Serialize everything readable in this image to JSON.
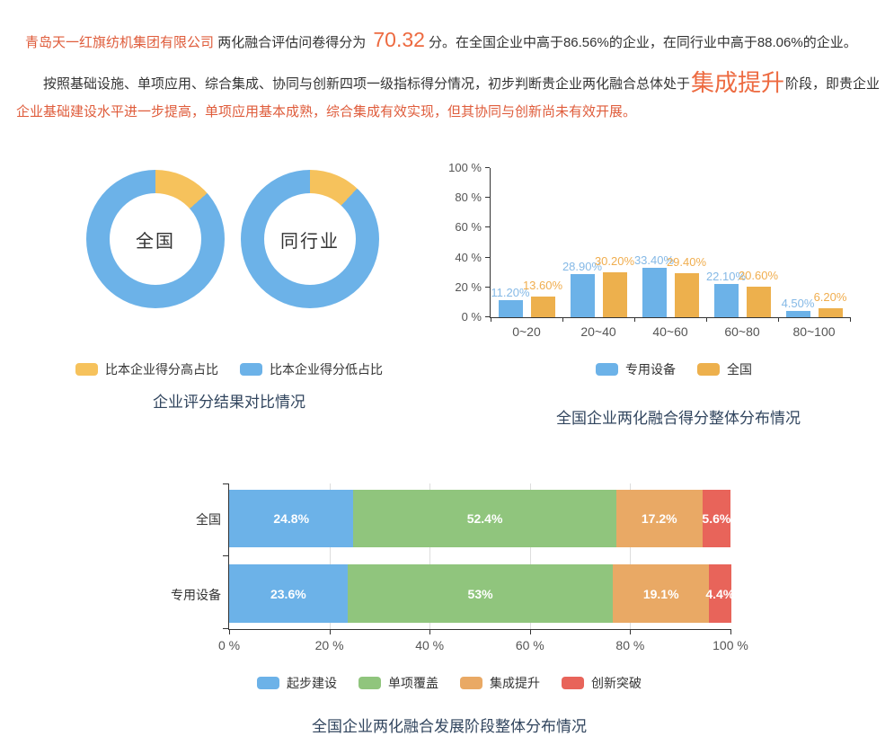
{
  "page": {
    "summary": {
      "company": "青岛天一红旗纺机集团有限公司",
      "score_prefix": "两化融合评估问卷得分为",
      "score": "70.32",
      "score_suffix": "分。在全国企业中高于86.56%的企业，在同行业中高于88.06%的企业。"
    },
    "stage_paragraph": {
      "part1": "按照基础设施、单项应用、综合集成、协同与创新四项一级指标得分情况，初步判断贵企业两化融合总体处于",
      "stage": "集成提升",
      "part2": "阶段，即贵企业",
      "part3": "企业基础建设水平进一步提高，单项应用基本成熟，综合集成有效实现，但其协同与创新尚未有效开展。"
    }
  },
  "colors": {
    "blue": "#6cb2e8",
    "yellow_donut": "#f6c25c",
    "yellow_bar": "#edb04d",
    "green": "#90c57d",
    "orange": "#e9a965",
    "red": "#e8645a",
    "title_navy": "#31455e",
    "accent_orange": "#ed6a40",
    "accent_red_text": "#df5c3b",
    "label_blue": "#85b9e6",
    "label_orange": "#f0ad4e"
  },
  "chart_data": [
    {
      "type": "pie",
      "variant": "donut",
      "name": "全国",
      "title": "企业评分结果对比情况",
      "labels": [
        "比本企业得分高占比",
        "比本企业得分低占比"
      ],
      "values": [
        13.44,
        86.56
      ],
      "colors": [
        "#f6c25c",
        "#6cb2e8"
      ],
      "legend_position": "bottom"
    },
    {
      "type": "pie",
      "variant": "donut",
      "name": "同行业",
      "labels": [
        "比本企业得分高占比",
        "比本企业得分低占比"
      ],
      "values": [
        11.94,
        88.06
      ],
      "colors": [
        "#f6c25c",
        "#6cb2e8"
      ]
    },
    {
      "type": "bar",
      "title": "全国企业两化融合得分整体分布情况",
      "categories": [
        "0~20",
        "20~40",
        "40~60",
        "60~80",
        "80~100"
      ],
      "series": [
        {
          "name": "专用设备",
          "color": "#6cb2e8",
          "label_color": "#85b9e6",
          "values": [
            11.2,
            28.9,
            33.4,
            22.1,
            4.5
          ],
          "labels": [
            "11.20%",
            "28.90%",
            "33.40%",
            "22.10%",
            "4.50%"
          ]
        },
        {
          "name": "全国",
          "color": "#edb04d",
          "label_color": "#f0ad4e",
          "values": [
            13.6,
            30.2,
            29.4,
            20.6,
            6.2
          ],
          "labels": [
            "13.60%",
            "30.20%",
            "29.40%",
            "20.60%",
            "6.20%"
          ]
        }
      ],
      "ylim": [
        0,
        100
      ],
      "yticks": [
        "0 %",
        "20 %",
        "40 %",
        "60 %",
        "80 %",
        "100 %"
      ],
      "grid": false,
      "legend_position": "bottom"
    },
    {
      "type": "bar",
      "variant": "stacked-horizontal",
      "title": "全国企业两化融合发展阶段整体分布情况",
      "categories": [
        "全国",
        "专用设备"
      ],
      "series": [
        {
          "name": "起步建设",
          "color": "#6cb2e8",
          "values": [
            24.8,
            23.6
          ],
          "labels": [
            "24.8%",
            "23.6%"
          ]
        },
        {
          "name": "单项覆盖",
          "color": "#90c57d",
          "values": [
            52.4,
            53.0
          ],
          "labels": [
            "52.4%",
            "53%"
          ]
        },
        {
          "name": "集成提升",
          "color": "#e9a965",
          "values": [
            17.2,
            19.1
          ],
          "labels": [
            "17.2%",
            "19.1%"
          ]
        },
        {
          "name": "创新突破",
          "color": "#e8645a",
          "values": [
            5.6,
            4.4
          ],
          "labels": [
            "5.6%",
            "4.4%"
          ]
        }
      ],
      "xlim": [
        0,
        100
      ],
      "xticks": [
        "0 %",
        "20 %",
        "40 %",
        "60 %",
        "80 %",
        "100 %"
      ],
      "grid": true,
      "legend_position": "bottom"
    }
  ]
}
